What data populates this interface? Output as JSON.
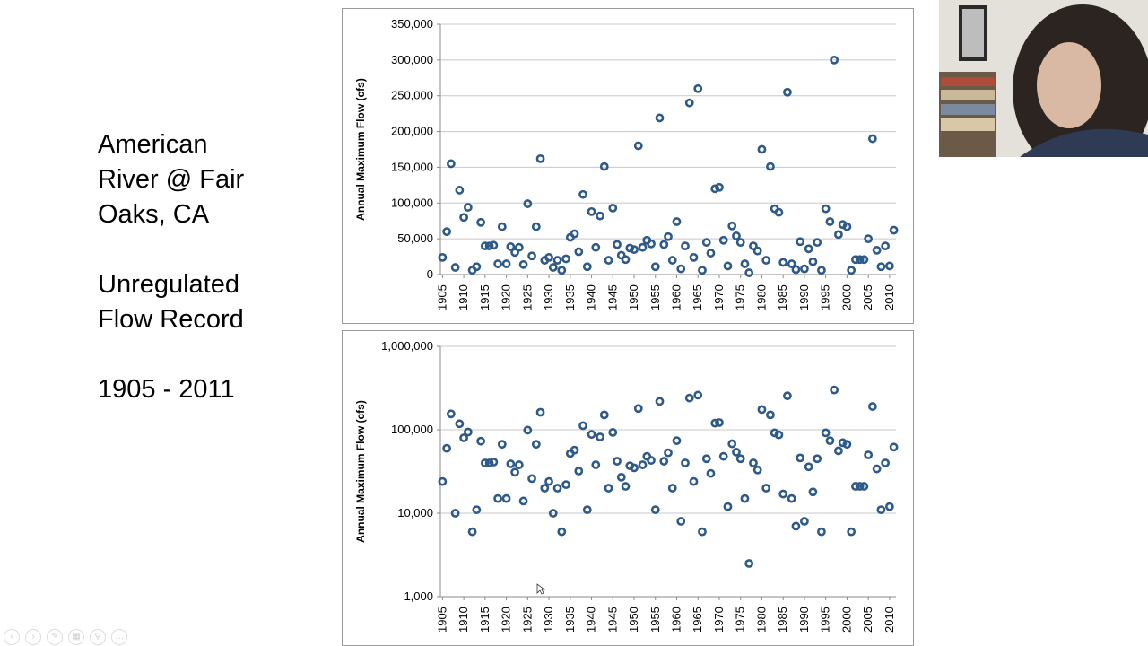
{
  "slide": {
    "line1": "American",
    "line2": "River @ Fair",
    "line3": "Oaks, CA",
    "line4": "Unregulated",
    "line5": "Flow Record",
    "line6": "1905 - 2011"
  },
  "colors": {
    "marker": "#2e5a8a",
    "grid": "#c8c8c8",
    "axis": "#8a8a8a",
    "text": "#000000"
  },
  "chart_data": [
    {
      "type": "scatter",
      "scale": "linear",
      "ylabel": "Annual Maximum Flow (cfs)",
      "xlim": [
        1905,
        2011
      ],
      "ylim": [
        0,
        350000
      ],
      "y_ticks": [
        0,
        50000,
        100000,
        150000,
        200000,
        250000,
        300000,
        350000
      ],
      "y_tick_labels": [
        "0",
        "50,000",
        "100,000",
        "150,000",
        "200,000",
        "250,000",
        "300,000",
        "350,000"
      ],
      "x_ticks": [
        1905,
        1910,
        1915,
        1920,
        1925,
        1930,
        1935,
        1940,
        1945,
        1950,
        1955,
        1960,
        1965,
        1970,
        1975,
        1980,
        1985,
        1990,
        1995,
        2000,
        2005,
        2010
      ],
      "grid": true,
      "marker": "open-circle"
    },
    {
      "type": "scatter",
      "scale": "log",
      "ylabel": "Annual Maximum Flow (cfs)",
      "xlim": [
        1905,
        2011
      ],
      "ylim": [
        1000,
        1000000
      ],
      "y_ticks": [
        1000,
        10000,
        100000,
        1000000
      ],
      "y_tick_labels": [
        "1,000",
        "10,000",
        "100,000",
        "1,000,000"
      ],
      "x_ticks": [
        1905,
        1910,
        1915,
        1920,
        1925,
        1930,
        1935,
        1940,
        1945,
        1950,
        1955,
        1960,
        1965,
        1970,
        1975,
        1980,
        1985,
        1990,
        1995,
        2000,
        2005,
        2010
      ],
      "grid": true,
      "marker": "open-circle"
    }
  ],
  "series": {
    "name": "",
    "x": [
      1905,
      1906,
      1907,
      1908,
      1909,
      1910,
      1911,
      1912,
      1913,
      1914,
      1915,
      1916,
      1917,
      1918,
      1919,
      1920,
      1921,
      1922,
      1923,
      1924,
      1925,
      1926,
      1927,
      1928,
      1929,
      1930,
      1931,
      1932,
      1933,
      1934,
      1935,
      1936,
      1937,
      1938,
      1939,
      1940,
      1941,
      1942,
      1943,
      1944,
      1945,
      1946,
      1947,
      1948,
      1949,
      1950,
      1951,
      1952,
      1953,
      1954,
      1955,
      1956,
      1957,
      1958,
      1959,
      1960,
      1961,
      1962,
      1963,
      1964,
      1965,
      1966,
      1967,
      1968,
      1969,
      1970,
      1971,
      1972,
      1973,
      1974,
      1975,
      1976,
      1977,
      1978,
      1979,
      1980,
      1981,
      1982,
      1983,
      1984,
      1985,
      1986,
      1987,
      1988,
      1989,
      1990,
      1991,
      1992,
      1993,
      1994,
      1995,
      1996,
      1997,
      1998,
      1999,
      2000,
      2001,
      2002,
      2003,
      2004,
      2005,
      2006,
      2007,
      2008,
      2009,
      2010,
      2011
    ],
    "y": [
      24000,
      60000,
      155000,
      10000,
      118000,
      80000,
      94000,
      6000,
      11000,
      73000,
      40000,
      40000,
      41000,
      15000,
      67000,
      15000,
      39000,
      31000,
      38000,
      14000,
      99000,
      26000,
      67000,
      162000,
      20000,
      24000,
      10000,
      20000,
      6000,
      22000,
      52000,
      57000,
      32000,
      112000,
      11000,
      88000,
      38000,
      82000,
      151000,
      20000,
      93000,
      42000,
      27000,
      21000,
      37000,
      35000,
      180000,
      38000,
      48000,
      43000,
      11000,
      219000,
      42000,
      53000,
      20000,
      74000,
      8000,
      40000,
      240000,
      24000,
      260000,
      6000,
      45000,
      30000,
      120000,
      122000,
      48000,
      12000,
      68000,
      54000,
      45000,
      15000,
      2500,
      40000,
      33000,
      175000,
      20000,
      151000,
      92000,
      87000,
      17000,
      255000,
      15000,
      7000,
      46000,
      8000,
      36000,
      18000,
      45000,
      6000,
      92000,
      74000,
      300000,
      56000,
      70000,
      67000,
      6000,
      21000,
      21000,
      21000,
      50000,
      190000,
      34000,
      11000,
      40000,
      12000,
      62000
    ]
  }
}
